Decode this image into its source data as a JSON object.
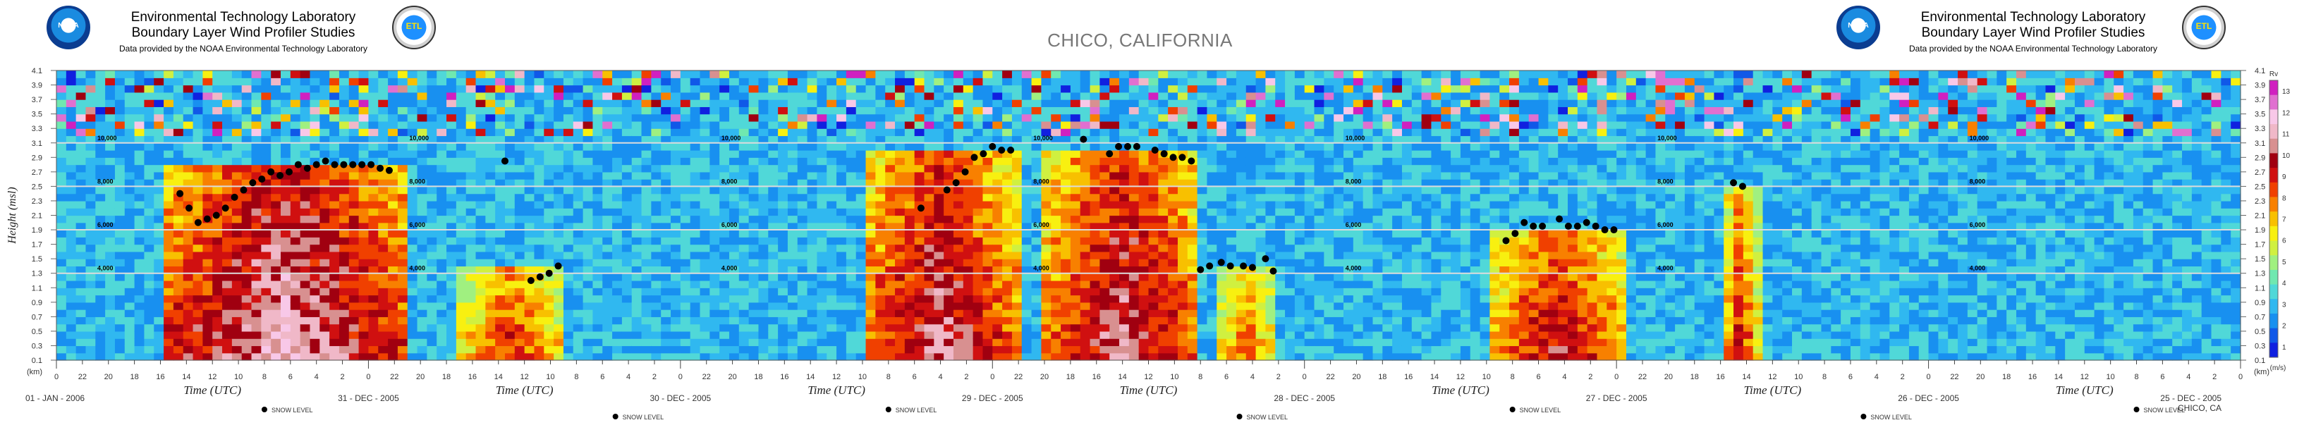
{
  "header": {
    "title_line1": "Environmental Technology Laboratory",
    "title_line2": "Boundary Layer Wind Profiler Studies",
    "credit": "Data provided by the NOAA Environmental Technology Laboratory",
    "location": "CHICO, CALIFORNIA",
    "noaa_logo": "NOAA",
    "etl_logo": "ETL"
  },
  "colors": {
    "background": "#ffffff",
    "grid_line": "#dcdcdc",
    "snow_marker": "#000000",
    "scale": [
      "#1020e0",
      "#1058e8",
      "#1890f0",
      "#30b8f0",
      "#50d8d8",
      "#70e8b0",
      "#a0f080",
      "#d0f040",
      "#f8f010",
      "#f8c000",
      "#f88000",
      "#f04000",
      "#d01010",
      "#a00010",
      "#d89090",
      "#f0b8c8",
      "#f8c8e8",
      "#e070d0",
      "#d020c0"
    ]
  },
  "chart_data": {
    "type": "heatmap",
    "title": "CHICO, CALIFORNIA",
    "ylabel": "Height (msl)",
    "y_unit_label": "(km)",
    "xlabel": "Time (UTC)",
    "yticks": [
      "0.1",
      "0.3",
      "0.5",
      "0.7",
      "0.9",
      "1.1",
      "1.3",
      "1.5",
      "1.7",
      "1.9",
      "2.1",
      "2.3",
      "2.5",
      "2.7",
      "2.9",
      "3.1",
      "3.3",
      "3.5",
      "3.7",
      "3.9",
      "4.1"
    ],
    "ylim": [
      0.1,
      4.1
    ],
    "x_direction": "time decreases left to right",
    "days": [
      "01 - JAN - 2006",
      "31 - DEC - 2005",
      "30 - DEC - 2005",
      "29 - DEC - 2005",
      "28 - DEC - 2005",
      "27 - DEC - 2005",
      "26 - DEC - 2005",
      "25 - DEC - 2005"
    ],
    "hour_ticks": [
      "0",
      "22",
      "20",
      "18",
      "16",
      "14",
      "12",
      "10",
      "8",
      "6",
      "4",
      "2"
    ],
    "altitude_lines": [
      {
        "label": "4,000",
        "height_km": 1.3
      },
      {
        "label": "6,000",
        "height_km": 1.9
      },
      {
        "label": "8,000",
        "height_km": 2.5
      },
      {
        "label": "10,000",
        "height_km": 3.1
      }
    ],
    "colorbar": {
      "ticks": [
        "1",
        "2",
        "3",
        "4",
        "5",
        "6",
        "7",
        "8",
        "9",
        "10",
        "11",
        "12",
        "13"
      ],
      "top_label": "Rv",
      "bottom_label": "(m/s)"
    },
    "snow_level_legend": "SNOW LEVEL",
    "footer_right": "CHICO, CA",
    "snow_level_km": [
      {
        "hours_back": 9.5,
        "height": 2.4
      },
      {
        "hours_back": 10.2,
        "height": 2.2
      },
      {
        "hours_back": 10.9,
        "height": 2.0
      },
      {
        "hours_back": 11.6,
        "height": 2.05
      },
      {
        "hours_back": 12.3,
        "height": 2.1
      },
      {
        "hours_back": 13.0,
        "height": 2.2
      },
      {
        "hours_back": 13.7,
        "height": 2.35
      },
      {
        "hours_back": 14.4,
        "height": 2.45
      },
      {
        "hours_back": 15.1,
        "height": 2.55
      },
      {
        "hours_back": 15.8,
        "height": 2.6
      },
      {
        "hours_back": 16.5,
        "height": 2.7
      },
      {
        "hours_back": 17.2,
        "height": 2.65
      },
      {
        "hours_back": 17.9,
        "height": 2.7
      },
      {
        "hours_back": 18.6,
        "height": 2.8
      },
      {
        "hours_back": 19.3,
        "height": 2.75
      },
      {
        "hours_back": 20.0,
        "height": 2.8
      },
      {
        "hours_back": 20.7,
        "height": 2.85
      },
      {
        "hours_back": 21.4,
        "height": 2.8
      },
      {
        "hours_back": 22.1,
        "height": 2.8
      },
      {
        "hours_back": 22.8,
        "height": 2.8
      },
      {
        "hours_back": 23.5,
        "height": 2.8
      },
      {
        "hours_back": 24.2,
        "height": 2.8
      },
      {
        "hours_back": 24.9,
        "height": 2.75
      },
      {
        "hours_back": 25.6,
        "height": 2.72
      },
      {
        "hours_back": 34.5,
        "height": 2.85
      },
      {
        "hours_back": 36.5,
        "height": 1.2
      },
      {
        "hours_back": 37.2,
        "height": 1.25
      },
      {
        "hours_back": 37.9,
        "height": 1.3
      },
      {
        "hours_back": 38.6,
        "height": 1.4
      },
      {
        "hours_back": 66.5,
        "height": 2.2
      },
      {
        "hours_back": 68.5,
        "height": 2.45
      },
      {
        "hours_back": 69.2,
        "height": 2.55
      },
      {
        "hours_back": 69.9,
        "height": 2.7
      },
      {
        "hours_back": 70.6,
        "height": 2.9
      },
      {
        "hours_back": 71.3,
        "height": 2.95
      },
      {
        "hours_back": 72.0,
        "height": 3.05
      },
      {
        "hours_back": 72.7,
        "height": 3.0
      },
      {
        "hours_back": 73.4,
        "height": 3.0
      },
      {
        "hours_back": 79.0,
        "height": 3.15
      },
      {
        "hours_back": 81.0,
        "height": 2.95
      },
      {
        "hours_back": 81.7,
        "height": 3.05
      },
      {
        "hours_back": 82.4,
        "height": 3.05
      },
      {
        "hours_back": 83.1,
        "height": 3.05
      },
      {
        "hours_back": 84.5,
        "height": 3.0
      },
      {
        "hours_back": 85.2,
        "height": 2.95
      },
      {
        "hours_back": 85.9,
        "height": 2.9
      },
      {
        "hours_back": 86.6,
        "height": 2.9
      },
      {
        "hours_back": 87.3,
        "height": 2.85
      },
      {
        "hours_back": 88.0,
        "height": 1.35
      },
      {
        "hours_back": 88.7,
        "height": 1.4
      },
      {
        "hours_back": 89.6,
        "height": 1.45
      },
      {
        "hours_back": 90.3,
        "height": 1.4
      },
      {
        "hours_back": 91.3,
        "height": 1.4
      },
      {
        "hours_back": 92.0,
        "height": 1.38
      },
      {
        "hours_back": 93.0,
        "height": 1.5
      },
      {
        "hours_back": 93.6,
        "height": 1.33
      },
      {
        "hours_back": 111.5,
        "height": 1.75
      },
      {
        "hours_back": 112.2,
        "height": 1.85
      },
      {
        "hours_back": 112.9,
        "height": 2.0
      },
      {
        "hours_back": 113.6,
        "height": 1.95
      },
      {
        "hours_back": 114.3,
        "height": 1.95
      },
      {
        "hours_back": 115.6,
        "height": 2.05
      },
      {
        "hours_back": 116.3,
        "height": 1.95
      },
      {
        "hours_back": 117.0,
        "height": 1.95
      },
      {
        "hours_back": 117.7,
        "height": 2.0
      },
      {
        "hours_back": 118.4,
        "height": 1.95
      },
      {
        "hours_back": 119.1,
        "height": 1.9
      },
      {
        "hours_back": 119.8,
        "height": 1.9
      },
      {
        "hours_back": 129.0,
        "height": 2.55
      },
      {
        "hours_back": 129.7,
        "height": 2.5
      }
    ]
  }
}
